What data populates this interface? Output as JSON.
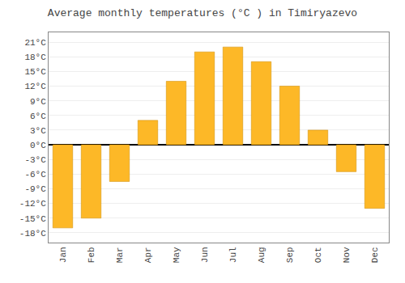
{
  "chart_data": {
    "type": "bar",
    "title": "Average monthly temperatures (°C ) in Timiryazevo",
    "categories": [
      "Jan",
      "Feb",
      "Mar",
      "Apr",
      "May",
      "Jun",
      "Jul",
      "Aug",
      "Sep",
      "Oct",
      "Nov",
      "Dec"
    ],
    "values": [
      -17,
      -15,
      -7.5,
      5,
      13,
      19,
      20,
      17,
      12,
      3,
      -5.5,
      -13
    ],
    "color": "#FDB827",
    "ylim": [
      -20,
      23
    ],
    "yticks": [
      {
        "value": -18,
        "label": "-18°C"
      },
      {
        "value": -15,
        "label": "-15°C"
      },
      {
        "value": -12,
        "label": "-12°C"
      },
      {
        "value": -9,
        "label": "-9°C"
      },
      {
        "value": -6,
        "label": "-6°C"
      },
      {
        "value": -3,
        "label": "-3°C"
      },
      {
        "value": 0,
        "label": "0°C"
      },
      {
        "value": 3,
        "label": "3°C"
      },
      {
        "value": 6,
        "label": "6°C"
      },
      {
        "value": 9,
        "label": "9°C"
      },
      {
        "value": 12,
        "label": "12°C"
      },
      {
        "value": 15,
        "label": "15°C"
      },
      {
        "value": 18,
        "label": "18°C"
      },
      {
        "value": 21,
        "label": "21°C"
      }
    ],
    "grid": true
  }
}
